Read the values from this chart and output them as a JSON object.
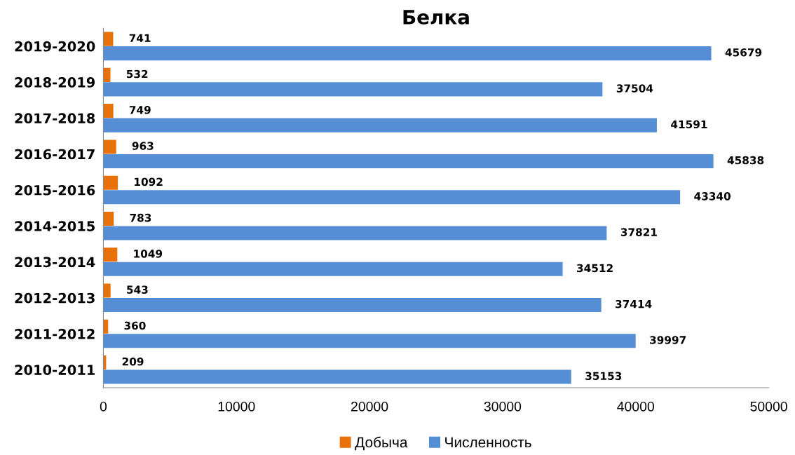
{
  "chart_data": {
    "type": "bar",
    "orientation": "horizontal",
    "title": "Белка",
    "categories": [
      "2019-2020",
      "2018-2019",
      "2017-2018",
      "2016-2017",
      "2015-2016",
      "2014-2015",
      "2013-2014",
      "2012-2013",
      "2011-2012",
      "2010-2011"
    ],
    "series": [
      {
        "name": "Добыча",
        "color": "#e8710a",
        "values": [
          741,
          532,
          749,
          963,
          1092,
          783,
          1049,
          543,
          360,
          209
        ]
      },
      {
        "name": "Численность",
        "color": "#558ed5",
        "values": [
          45679,
          37504,
          41591,
          45838,
          43340,
          37821,
          34512,
          37414,
          39997,
          35153
        ]
      }
    ],
    "xlim": [
      0,
      50000
    ],
    "xticks": [
      0,
      10000,
      20000,
      30000,
      40000,
      50000
    ],
    "data_labels": true,
    "legend": "bottom",
    "grid": false
  }
}
